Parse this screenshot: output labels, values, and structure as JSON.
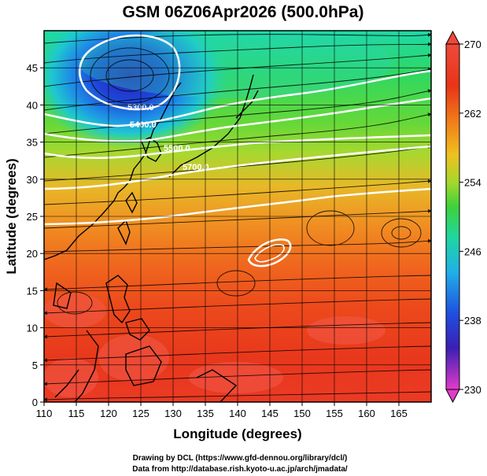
{
  "title": "GSM 06Z06Apr2026 (500.0hPa)",
  "x_axis": {
    "label": "Longitude (degrees)",
    "range": [
      110,
      170
    ],
    "ticks": [
      "110",
      "115",
      "120",
      "125",
      "130",
      "135",
      "140",
      "145",
      "150",
      "155",
      "160",
      "165"
    ]
  },
  "y_axis": {
    "label": "Latitude  (degrees)",
    "range": [
      0,
      50
    ],
    "ticks": [
      "0",
      "5",
      "10",
      "15",
      "20",
      "25",
      "30",
      "35",
      "40",
      "45"
    ]
  },
  "colorbar": {
    "ticks": [
      "270",
      "262",
      "254",
      "246",
      "238",
      "230"
    ],
    "range": [
      230,
      270
    ],
    "colors": [
      "#e23bc8",
      "#3a1fb5",
      "#1f4fe0",
      "#20b0e8",
      "#1fd6a0",
      "#3fd23a",
      "#a5d82c",
      "#f0c020",
      "#f07a18",
      "#e83418",
      "#ee4a3c"
    ]
  },
  "contour_labels": [
    "5300.0",
    "5400.0",
    "5500.0",
    "5700.0"
  ],
  "credits": {
    "line1": "Drawing by DCL (https://www.gfd-dennou.org/library/dcl/)",
    "line2": "Data from http://database.rish.kyoto-u.ac.jp/arch/jmadata/"
  }
}
